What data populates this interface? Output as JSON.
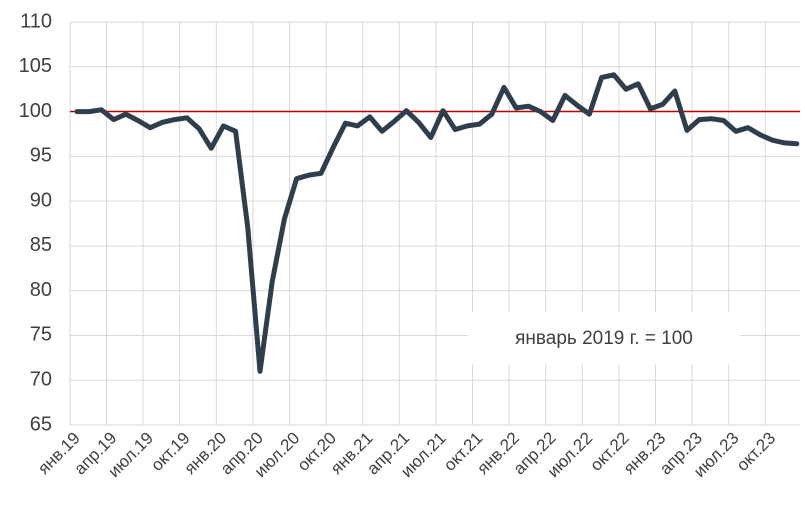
{
  "chart_data": {
    "type": "line",
    "categories": [
      "янв.19",
      null,
      null,
      "апр.19",
      null,
      null,
      "июл.19",
      null,
      null,
      "окт.19",
      null,
      null,
      "янв.20",
      null,
      null,
      "апр.20",
      null,
      null,
      "июл.20",
      null,
      null,
      "окт.20",
      null,
      null,
      "янв.21",
      null,
      null,
      "апр.21",
      null,
      null,
      "июл.21",
      null,
      null,
      "окт.21",
      null,
      null,
      "янв.22",
      null,
      null,
      "апр.22",
      null,
      null,
      "июл.22",
      null,
      null,
      "окт.22",
      null,
      null,
      "янв.23",
      null,
      null,
      "апр.23",
      null,
      null,
      "июл.23",
      null,
      null,
      "окт.23",
      null,
      null
    ],
    "series": [
      {
        "color": "#2f3e4c",
        "values": [
          100,
          100,
          100.2,
          99.1,
          99.7,
          99,
          98.2,
          98.8,
          99.1,
          99.3,
          98.1,
          95.9,
          98.4,
          97.8,
          87,
          71,
          81,
          88,
          92.5,
          92.9,
          93.1,
          96,
          98.7,
          98.4,
          99.4,
          97.8,
          98.9,
          100.1,
          98.8,
          97.1,
          100.1,
          98,
          98.4,
          98.6,
          99.7,
          102.7,
          100.4,
          100.6,
          100,
          99,
          101.8,
          100.7,
          99.7,
          103.8,
          104.1,
          102.5,
          103.1,
          100.3,
          100.8,
          102.3,
          97.9,
          99.1,
          99.2,
          99,
          97.8,
          98.2,
          97.4,
          96.8,
          96.5,
          96.4
        ]
      }
    ],
    "ylim": [
      65,
      110
    ],
    "yticks": [
      65,
      70,
      75,
      80,
      85,
      90,
      95,
      100,
      105,
      110
    ],
    "grid": true,
    "hline": {
      "value": 100,
      "color": "#c00000"
    },
    "annotation": "январь 2019 г. = 100"
  }
}
